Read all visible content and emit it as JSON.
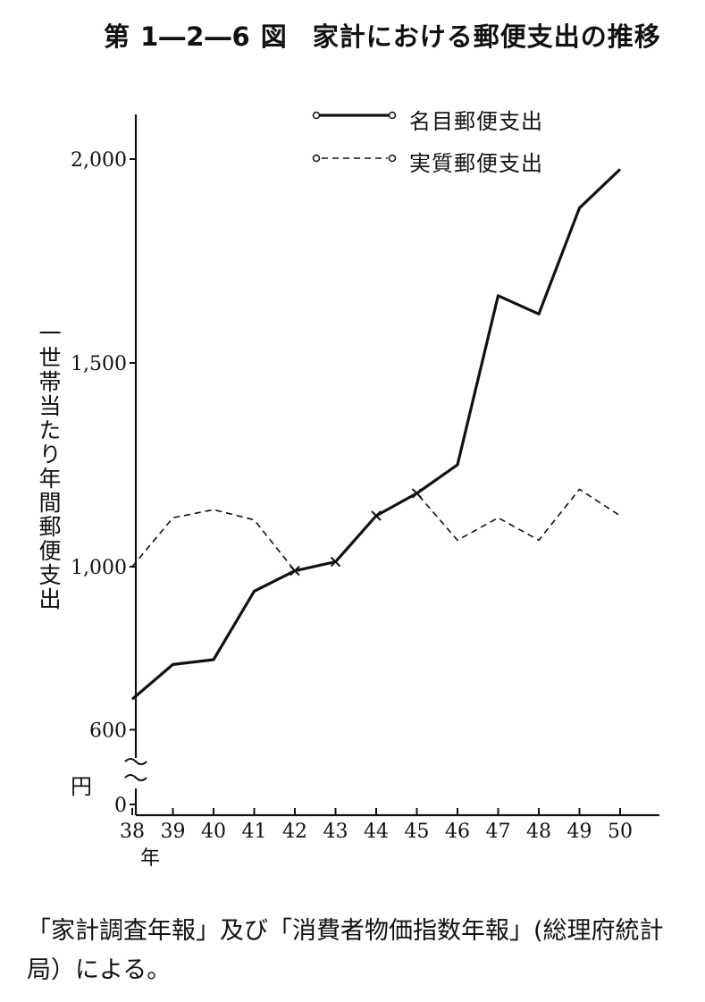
{
  "title": {
    "figure_no": "第 1―2―6 図",
    "text": "家計における郵便支出の推移"
  },
  "source_note": "「家計調査年報」及び「消費者物価指数年報」(総理府統計局）による。",
  "chart_data": {
    "type": "line",
    "title": "家計における郵便支出の推移",
    "ylabel": "一世帯当たり年間郵便支出",
    "yunit": "円",
    "xunit": "年",
    "axis_break": true,
    "grid": false,
    "legend_position": "top-right",
    "y_ticks": [
      {
        "value": 0,
        "label": "0"
      },
      {
        "value": 600,
        "label": "600"
      },
      {
        "value": 1000,
        "label": "1,000"
      },
      {
        "value": 1500,
        "label": "1,500"
      },
      {
        "value": 2000,
        "label": "2,000"
      }
    ],
    "categories": [
      "38",
      "39",
      "40",
      "41",
      "42",
      "43",
      "44",
      "45",
      "46",
      "47",
      "48",
      "49",
      "50"
    ],
    "series": [
      {
        "name": "名目郵便支出",
        "style": "solid",
        "values": [
          {
            "x": "38",
            "y": 675
          },
          {
            "x": "39",
            "y": 760
          },
          {
            "x": "40",
            "y": 772
          },
          {
            "x": "41",
            "y": 940
          },
          {
            "x": "42",
            "y": 990
          },
          {
            "x": "43",
            "y": 1012
          },
          {
            "x": "44",
            "y": 1125
          },
          {
            "x": "45",
            "y": 1180
          },
          {
            "x": "46",
            "y": 1250
          },
          {
            "x": "47",
            "y": 1665
          },
          {
            "x": "48",
            "y": 1620
          },
          {
            "x": "49",
            "y": 1880
          },
          {
            "x": "50",
            "y": 1975
          }
        ]
      },
      {
        "name": "実質郵便支出",
        "style": "dashed",
        "values": [
          {
            "x": "38",
            "y": 1000
          },
          {
            "x": "39",
            "y": 1120
          },
          {
            "x": "40",
            "y": 1140
          },
          {
            "x": "41",
            "y": 1115
          },
          {
            "x": "42",
            "y": 990
          },
          {
            "x": "43",
            "y": 1012
          },
          {
            "x": "44",
            "y": 1125
          },
          {
            "x": "45",
            "y": 1180
          },
          {
            "x": "46",
            "y": 1065
          },
          {
            "x": "47",
            "y": 1120
          },
          {
            "x": "48",
            "y": 1065
          },
          {
            "x": "49",
            "y": 1190
          },
          {
            "x": "50",
            "y": 1125
          }
        ]
      }
    ],
    "crossing_markers": [
      "42",
      "43",
      "44",
      "45"
    ]
  }
}
